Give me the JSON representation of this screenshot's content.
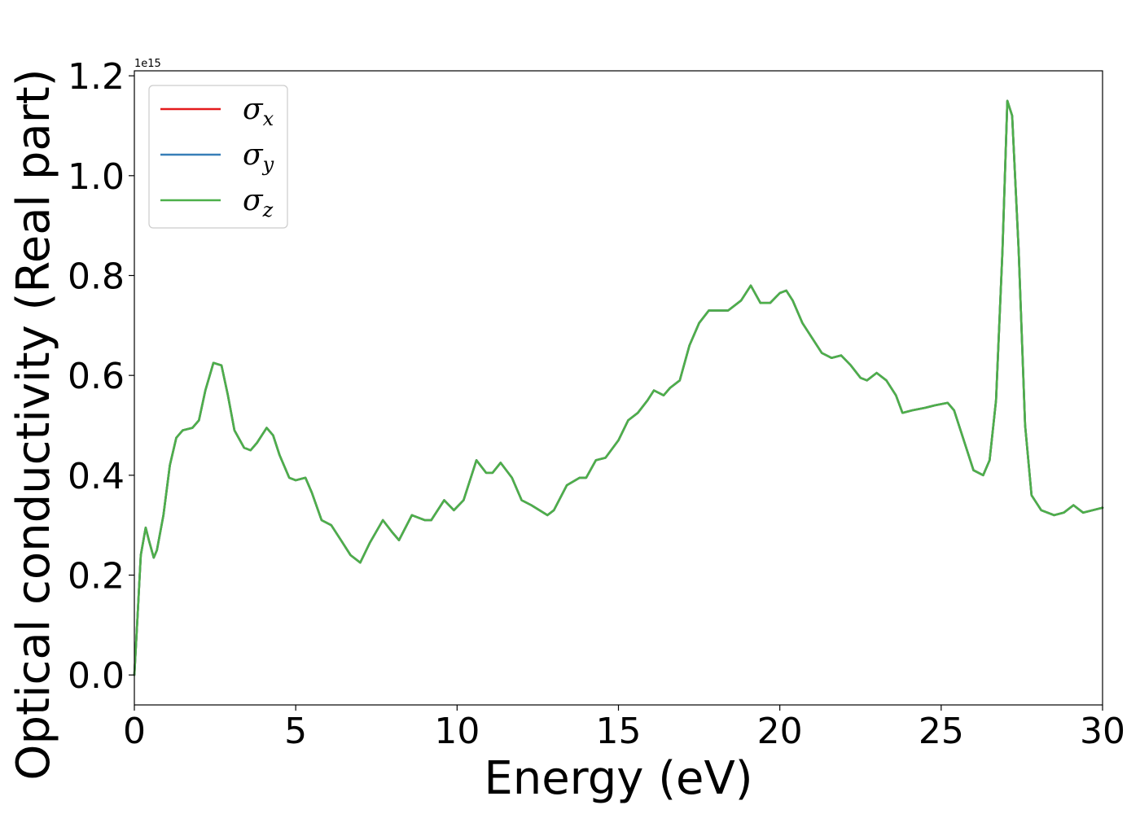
{
  "chart_data": {
    "type": "line",
    "xlabel": "Energy (eV)",
    "ylabel": "Optical conductivity (Real part)",
    "y_offset_label": "1e15",
    "xlim": [
      0,
      30
    ],
    "ylim": [
      -0.06,
      1.21
    ],
    "xticks": [
      0,
      5,
      10,
      15,
      20,
      25,
      30
    ],
    "yticks": [
      0.0,
      0.2,
      0.4,
      0.6,
      0.8,
      1.0,
      1.2
    ],
    "xtick_labels": [
      "0",
      "5",
      "10",
      "15",
      "20",
      "25",
      "30"
    ],
    "ytick_labels": [
      "0.0",
      "0.2",
      "0.4",
      "0.6",
      "0.8",
      "1.0",
      "1.2"
    ],
    "grid": false,
    "legend_position": "upper-left",
    "colors": {
      "x": "#e41a1c",
      "y": "#377eb8",
      "z": "#4daf4a"
    },
    "series": [
      {
        "name": "σx",
        "symbol": "σ",
        "sub": "x",
        "color": "#e41a1c"
      },
      {
        "name": "σy",
        "symbol": "σ",
        "sub": "y",
        "color": "#377eb8"
      },
      {
        "name": "σz",
        "symbol": "σ",
        "sub": "z",
        "color": "#4daf4a"
      }
    ],
    "x": [
      0.0,
      0.1,
      0.2,
      0.35,
      0.45,
      0.6,
      0.7,
      0.9,
      1.1,
      1.3,
      1.5,
      1.8,
      2.0,
      2.2,
      2.45,
      2.7,
      2.9,
      3.1,
      3.4,
      3.6,
      3.8,
      4.1,
      4.3,
      4.5,
      4.8,
      5.0,
      5.3,
      5.5,
      5.8,
      6.1,
      6.4,
      6.7,
      7.0,
      7.3,
      7.7,
      8.0,
      8.2,
      8.6,
      9.0,
      9.2,
      9.6,
      9.9,
      10.2,
      10.6,
      10.9,
      11.1,
      11.35,
      11.7,
      12.0,
      12.3,
      12.8,
      13.0,
      13.4,
      13.8,
      14.0,
      14.3,
      14.6,
      15.0,
      15.3,
      15.6,
      15.9,
      16.1,
      16.4,
      16.6,
      16.9,
      17.2,
      17.5,
      17.8,
      18.0,
      18.4,
      18.8,
      19.1,
      19.4,
      19.7,
      20.0,
      20.2,
      20.4,
      20.7,
      21.0,
      21.3,
      21.6,
      21.9,
      22.2,
      22.5,
      22.7,
      23.0,
      23.3,
      23.6,
      23.8,
      24.1,
      24.5,
      24.8,
      25.2,
      25.4,
      25.7,
      26.0,
      26.3,
      26.5,
      26.7,
      26.9,
      27.05,
      27.2,
      27.4,
      27.6,
      27.8,
      28.1,
      28.5,
      28.8,
      29.1,
      29.4,
      29.7,
      30.0
    ],
    "y": [
      0.0,
      0.12,
      0.24,
      0.295,
      0.27,
      0.235,
      0.25,
      0.32,
      0.42,
      0.475,
      0.49,
      0.495,
      0.51,
      0.57,
      0.625,
      0.62,
      0.56,
      0.49,
      0.455,
      0.45,
      0.465,
      0.495,
      0.48,
      0.44,
      0.395,
      0.39,
      0.395,
      0.365,
      0.31,
      0.3,
      0.27,
      0.24,
      0.225,
      0.265,
      0.31,
      0.285,
      0.27,
      0.32,
      0.31,
      0.31,
      0.35,
      0.33,
      0.35,
      0.43,
      0.405,
      0.405,
      0.425,
      0.395,
      0.35,
      0.34,
      0.32,
      0.33,
      0.38,
      0.395,
      0.395,
      0.43,
      0.435,
      0.47,
      0.51,
      0.525,
      0.55,
      0.57,
      0.56,
      0.575,
      0.59,
      0.66,
      0.705,
      0.73,
      0.73,
      0.73,
      0.75,
      0.78,
      0.745,
      0.745,
      0.765,
      0.77,
      0.75,
      0.705,
      0.675,
      0.645,
      0.635,
      0.64,
      0.62,
      0.595,
      0.59,
      0.605,
      0.59,
      0.56,
      0.525,
      0.53,
      0.535,
      0.54,
      0.545,
      0.53,
      0.47,
      0.41,
      0.4,
      0.43,
      0.55,
      0.85,
      1.15,
      1.12,
      0.85,
      0.5,
      0.36,
      0.33,
      0.32,
      0.325,
      0.34,
      0.325,
      0.33,
      0.335
    ]
  }
}
